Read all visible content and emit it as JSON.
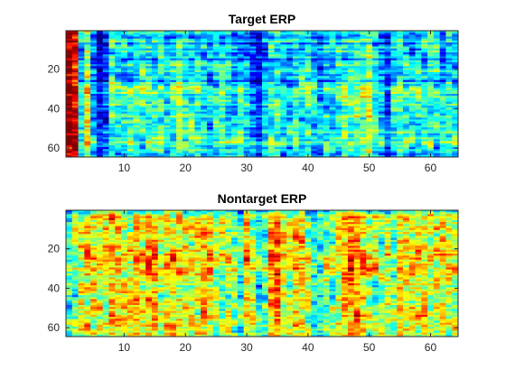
{
  "chart_data": [
    {
      "type": "heatmap",
      "title": "Target ERP",
      "xlabel": "",
      "ylabel": "",
      "xlim": [
        0.5,
        64.5
      ],
      "ylim": [
        0.5,
        64.5
      ],
      "y_reversed": true,
      "xticks": [
        10,
        20,
        30,
        40,
        50,
        60
      ],
      "yticks": [
        20,
        40,
        60
      ],
      "colormap": "jet",
      "grid": false,
      "x_col_profile": [
        0.95,
        0.85,
        0.35,
        0.55,
        0.25,
        0.1,
        0.2,
        0.4,
        0.35,
        0.35,
        0.4,
        0.4,
        0.35,
        0.4,
        0.4,
        0.4,
        0.35,
        0.4,
        0.45,
        0.4,
        0.35,
        0.4,
        0.35,
        0.3,
        0.35,
        0.4,
        0.35,
        0.3,
        0.35,
        0.3,
        0.2,
        0.1,
        0.3,
        0.35,
        0.4,
        0.35,
        0.3,
        0.35,
        0.35,
        0.4,
        0.3,
        0.25,
        0.35,
        0.3,
        0.35,
        0.4,
        0.35,
        0.4,
        0.45,
        0.5,
        0.35,
        0.3,
        0.15,
        0.35,
        0.4,
        0.35,
        0.3,
        0.35,
        0.35,
        0.4,
        0.35,
        0.3,
        0.35,
        0.3
      ],
      "y_row_profile": [
        0.05,
        0.0,
        -0.05,
        -0.1,
        0.0,
        0.05,
        -0.1,
        0.0,
        0.05,
        -0.05,
        0.05,
        -0.05,
        0.0,
        0.05,
        -0.1,
        0.0,
        0.0,
        0.05,
        -0.05,
        0.0,
        0.05,
        0.0,
        -0.05,
        0.05,
        0.0,
        -0.1,
        0.05,
        0.0,
        0.1,
        0.15,
        0.1,
        0.15,
        0.05,
        0.1,
        0.05,
        0.1,
        0.05,
        0.1,
        0.0,
        0.05,
        0.05,
        0.0,
        0.05,
        0.1,
        0.0,
        0.05,
        0.05,
        0.0,
        0.05,
        0.0,
        0.05,
        0.1,
        0.0,
        0.05,
        0.1,
        0.05,
        0.15,
        0.1,
        0.05,
        0.0,
        0.05,
        0.0,
        -0.05,
        0.0
      ],
      "noise_amplitude": 0.12,
      "seed": 7
    },
    {
      "type": "heatmap",
      "title": "Nontarget ERP",
      "xlabel": "",
      "ylabel": "",
      "xlim": [
        0.5,
        64.5
      ],
      "ylim": [
        0.5,
        64.5
      ],
      "y_reversed": true,
      "xticks": [
        10,
        20,
        30,
        40,
        50,
        60
      ],
      "yticks": [
        20,
        40,
        60
      ],
      "colormap": "jet",
      "grid": false,
      "x_col_profile": [
        0.4,
        0.45,
        0.55,
        0.6,
        0.6,
        0.55,
        0.6,
        0.65,
        0.6,
        0.6,
        0.55,
        0.6,
        0.6,
        0.65,
        0.6,
        0.55,
        0.6,
        0.6,
        0.65,
        0.6,
        0.55,
        0.6,
        0.6,
        0.55,
        0.5,
        0.5,
        0.55,
        0.5,
        0.35,
        0.6,
        0.5,
        0.35,
        0.45,
        0.65,
        0.75,
        0.6,
        0.55,
        0.65,
        0.6,
        0.5,
        0.35,
        0.35,
        0.45,
        0.5,
        0.55,
        0.7,
        0.75,
        0.7,
        0.6,
        0.55,
        0.5,
        0.5,
        0.5,
        0.45,
        0.6,
        0.6,
        0.55,
        0.6,
        0.6,
        0.55,
        0.55,
        0.6,
        0.55,
        0.55
      ],
      "y_row_profile": [
        -0.15,
        -0.1,
        0.0,
        0.05,
        0.05,
        0.0,
        0.05,
        0.0,
        0.05,
        0.05,
        0.0,
        0.05,
        0.0,
        0.05,
        0.0,
        0.05,
        0.0,
        0.0,
        0.05,
        0.05,
        0.1,
        0.05,
        0.15,
        0.1,
        0.15,
        0.1,
        0.05,
        0.1,
        0.05,
        0.15,
        0.1,
        0.05,
        0.1,
        0.0,
        0.05,
        0.05,
        0.0,
        0.05,
        -0.05,
        0.0,
        0.0,
        0.05,
        0.0,
        -0.05,
        0.0,
        0.05,
        0.0,
        0.05,
        0.0,
        0.05,
        0.0,
        0.05,
        0.0,
        0.05,
        0.0,
        0.05,
        0.0,
        0.05,
        0.05,
        0.0,
        0.05,
        0.0,
        0.05,
        0.0
      ],
      "noise_amplitude": 0.14,
      "seed": 13
    }
  ]
}
